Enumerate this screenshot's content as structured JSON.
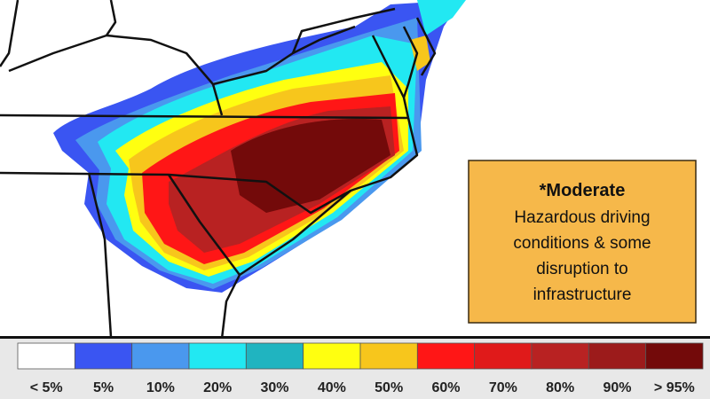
{
  "map": {
    "callout": {
      "title": "*Moderate",
      "lines": [
        "Hazardous driving",
        "conditions & some",
        "disruption to",
        "infrastructure"
      ]
    },
    "legend": [
      {
        "label": "< 5%",
        "color": "#ffffff"
      },
      {
        "label": "5%",
        "color": "#3a55f2"
      },
      {
        "label": "10%",
        "color": "#4a98ee"
      },
      {
        "label": "20%",
        "color": "#22e8f2"
      },
      {
        "label": "30%",
        "color": "#20b4c0"
      },
      {
        "label": "40%",
        "color": "#ffff10"
      },
      {
        "label": "50%",
        "color": "#f7c61c"
      },
      {
        "label": "60%",
        "color": "#ff1616"
      },
      {
        "label": "70%",
        "color": "#e01a1a"
      },
      {
        "label": "80%",
        "color": "#b82222"
      },
      {
        "label": "90%",
        "color": "#9c1b1b"
      },
      {
        "label": "> 95%",
        "color": "#730a0a"
      }
    ]
  }
}
